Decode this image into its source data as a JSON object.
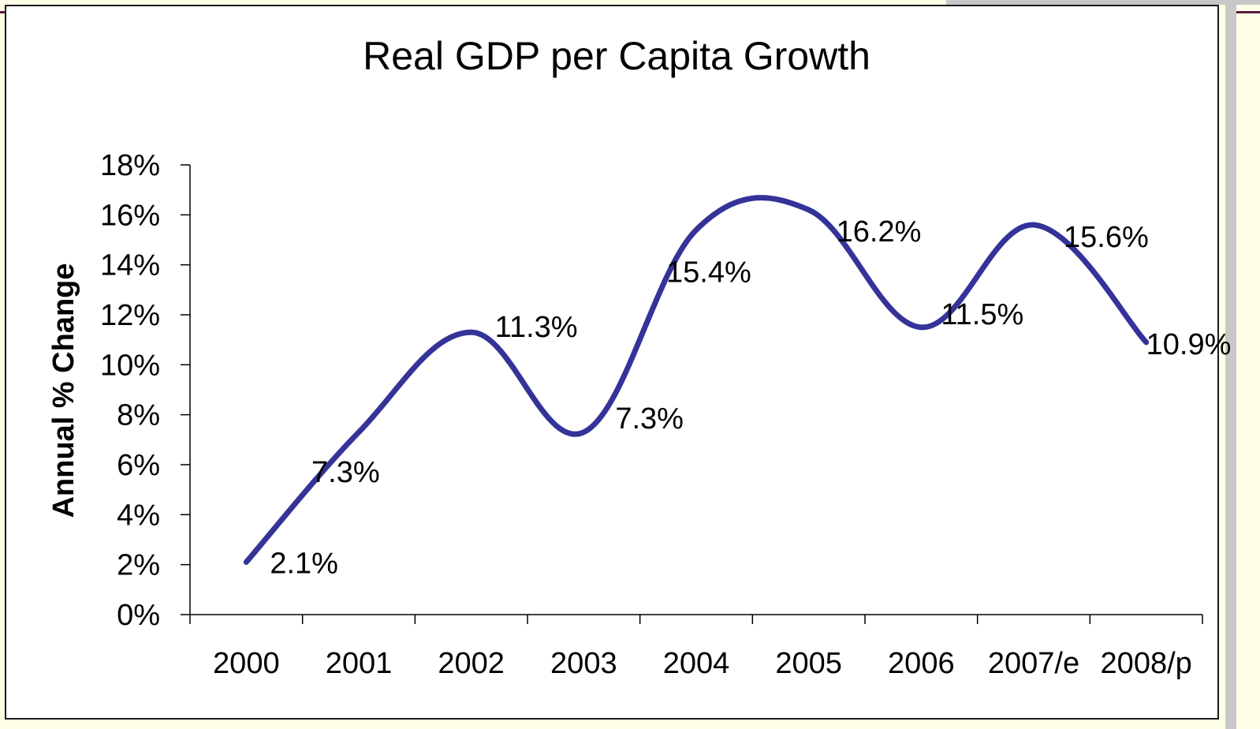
{
  "chart_data": {
    "type": "line",
    "title": "Real GDP per Capita Growth",
    "xlabel": "",
    "ylabel": "Annual % Change",
    "categories": [
      "2000",
      "2001",
      "2002",
      "2003",
      "2004",
      "2005",
      "2006",
      "2007/e",
      "2008/p"
    ],
    "values": [
      2.1,
      7.3,
      11.3,
      7.3,
      15.4,
      16.2,
      11.5,
      15.6,
      10.9
    ],
    "data_labels": [
      "2.1%",
      "7.3%",
      "11.3%",
      "7.3%",
      "15.4%",
      "16.2%",
      "11.5%",
      "15.6%",
      "10.9%"
    ],
    "ylim": [
      0,
      18
    ],
    "yticks": [
      "0%",
      "2%",
      "4%",
      "6%",
      "8%",
      "10%",
      "12%",
      "14%",
      "16%",
      "18%"
    ],
    "grid": false,
    "legend": "none",
    "series_color": "#333399",
    "smoothed": true
  }
}
